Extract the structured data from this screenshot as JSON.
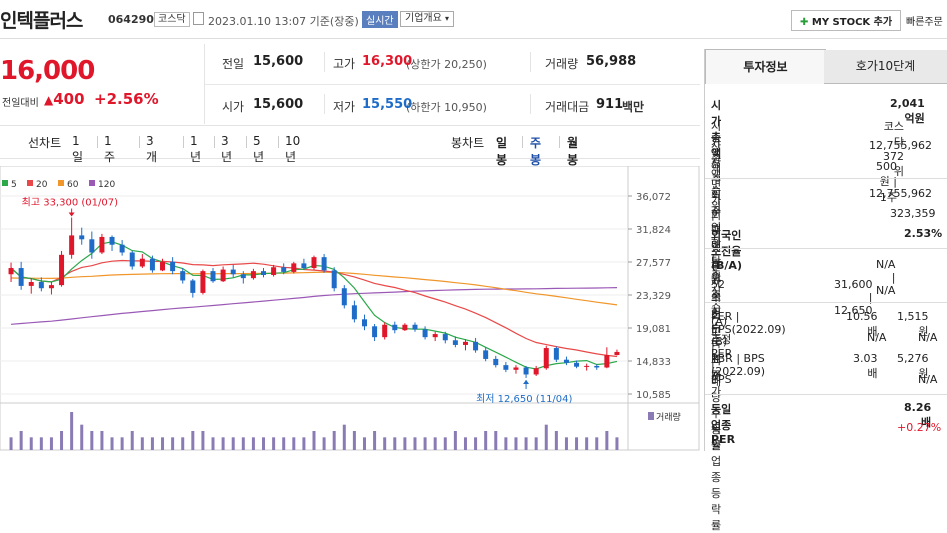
{
  "header": {
    "title": "인텍플러스",
    "code": "064290",
    "market": "코스닥",
    "datetime": "2023.01.10 13:07 기준(장중)",
    "realtime": "실시간",
    "company_info": "기업개요",
    "my_stock": "MY STOCK 추가",
    "quick_order": "빠른주문"
  },
  "price": {
    "current": "16,000",
    "change_label": "전일대비",
    "change_value": "400",
    "change_pct": "+2.56%"
  },
  "quote": {
    "prev_close_label": "전일",
    "prev_close": "15,600",
    "open_label": "시가",
    "open": "15,600",
    "high_label": "고가",
    "high": "16,300",
    "upper_limit_label": "(상한가 20,250)",
    "low_label": "저가",
    "low": "15,550",
    "lower_limit_label": "(하한가 10,950)",
    "volume_label": "거래량",
    "volume": "56,988",
    "amount_label": "거래대금",
    "amount": "911",
    "amount_unit": "백만"
  },
  "periods": {
    "line_label": "선차트",
    "line_items": [
      "1일",
      "1주일",
      "3개월",
      "1년",
      "3년",
      "5년",
      "10년"
    ],
    "candle_label": "봉차트",
    "candle_items": [
      "일봉",
      "주봉",
      "월봉"
    ],
    "active": "주봉"
  },
  "chart_data": {
    "type": "candlestick",
    "legend": [
      {
        "name": "5",
        "color": "#2ba84a"
      },
      {
        "name": "20",
        "color": "#e84848"
      },
      {
        "name": "60",
        "color": "#f0962a"
      },
      {
        "name": "120",
        "color": "#9b59b6"
      }
    ],
    "y_ticks": [
      36072,
      31824,
      27577,
      23329,
      19081,
      14833,
      10585
    ],
    "y_tick_labels": [
      "36,072",
      "31,824",
      "27,577",
      "23,329",
      "19,081",
      "14,833",
      "10,585"
    ],
    "ylim": [
      10585,
      36072
    ],
    "high_annotation": "최고 33,300 (01/07)",
    "low_annotation": "최저 12,650 (11/04)",
    "volume_label": "거래량",
    "candles": [
      [
        26000,
        27500,
        25000,
        26800
      ],
      [
        26800,
        27600,
        24000,
        24500
      ],
      [
        24500,
        25500,
        23500,
        25000
      ],
      [
        25000,
        25600,
        23800,
        24200
      ],
      [
        24200,
        25000,
        23400,
        24600
      ],
      [
        24600,
        29000,
        24400,
        28500
      ],
      [
        28500,
        33300,
        28000,
        31000
      ],
      [
        31000,
        32000,
        29800,
        30500
      ],
      [
        30500,
        31500,
        28000,
        28800
      ],
      [
        28800,
        31200,
        28600,
        30800
      ],
      [
        30800,
        31000,
        29000,
        29800
      ],
      [
        29800,
        30400,
        28400,
        28800
      ],
      [
        28800,
        29000,
        26600,
        27000
      ],
      [
        27000,
        28600,
        26800,
        28000
      ],
      [
        28000,
        28400,
        26200,
        26500
      ],
      [
        26500,
        28000,
        26400,
        27600
      ],
      [
        27600,
        28200,
        26000,
        26400
      ],
      [
        26400,
        26800,
        24800,
        25200
      ],
      [
        25200,
        25400,
        23000,
        23600
      ],
      [
        23600,
        26600,
        23400,
        26400
      ],
      [
        26400,
        26800,
        24900,
        25100
      ],
      [
        25100,
        27000,
        25000,
        26600
      ],
      [
        26600,
        27200,
        25600,
        26000
      ],
      [
        26000,
        26400,
        24800,
        25500
      ],
      [
        25500,
        26700,
        25300,
        26400
      ],
      [
        26400,
        26800,
        25600,
        25900
      ],
      [
        25900,
        27200,
        25700,
        26900
      ],
      [
        26900,
        27400,
        26000,
        26300
      ],
      [
        26300,
        27600,
        26100,
        27400
      ],
      [
        27400,
        28000,
        26600,
        26800
      ],
      [
        26800,
        28400,
        26600,
        28200
      ],
      [
        28200,
        28600,
        26200,
        26500
      ],
      [
        26500,
        26900,
        23800,
        24200
      ],
      [
        24200,
        24600,
        21600,
        22000
      ],
      [
        22000,
        22600,
        19800,
        20200
      ],
      [
        20200,
        20800,
        18800,
        19300
      ],
      [
        19300,
        19600,
        17400,
        17900
      ],
      [
        17900,
        19800,
        17600,
        19500
      ],
      [
        19500,
        19900,
        18400,
        18800
      ],
      [
        18800,
        19700,
        18700,
        19500
      ],
      [
        19500,
        19800,
        18600,
        18900
      ],
      [
        18900,
        19300,
        17600,
        17900
      ],
      [
        17900,
        18600,
        17400,
        18300
      ],
      [
        18300,
        18600,
        17100,
        17500
      ],
      [
        17500,
        18000,
        16600,
        16900
      ],
      [
        16900,
        17600,
        16200,
        17300
      ],
      [
        17300,
        17800,
        15900,
        16200
      ],
      [
        16200,
        16600,
        14800,
        15100
      ],
      [
        15100,
        15500,
        14000,
        14300
      ],
      [
        14300,
        14700,
        13400,
        13700
      ],
      [
        13700,
        14300,
        13200,
        14000
      ],
      [
        14000,
        14200,
        12650,
        13100
      ],
      [
        13100,
        14200,
        12900,
        13900
      ],
      [
        13900,
        16800,
        13700,
        16500
      ],
      [
        16500,
        16700,
        14700,
        15000
      ],
      [
        15000,
        15400,
        14300,
        14600
      ],
      [
        14600,
        14900,
        13900,
        14100
      ],
      [
        14100,
        14500,
        13600,
        14200
      ],
      [
        14200,
        14400,
        13700,
        14000
      ],
      [
        14000,
        16600,
        13900,
        15600
      ],
      [
        15600,
        16300,
        15550,
        16000
      ]
    ],
    "volumes": [
      2,
      3,
      2,
      2,
      2,
      3,
      6,
      4,
      3,
      3,
      2,
      2,
      3,
      2,
      2,
      2,
      2,
      2,
      3,
      3,
      2,
      2,
      2,
      2,
      2,
      2,
      2,
      2,
      2,
      2,
      3,
      2,
      3,
      4,
      3,
      2,
      3,
      2,
      2,
      2,
      2,
      2,
      2,
      2,
      3,
      2,
      2,
      3,
      3,
      2,
      2,
      2,
      2,
      4,
      3,
      2,
      2,
      2,
      2,
      3,
      2
    ]
  },
  "invest": {
    "tab_invest": "투자정보",
    "tab_orderbook": "호가10단계",
    "rows1": [
      {
        "label": "시가총액",
        "value": "2,041억원"
      },
      {
        "label": "시가총액순위",
        "value": "코스닥 372위"
      },
      {
        "label": "상장주식수",
        "value": "12,755,962"
      },
      {
        "label": "액면가 | 매매단위",
        "value": "500원 | 1주"
      }
    ],
    "rows2": [
      {
        "label": "외국인한도주식수(A)",
        "value": "12,755,962"
      },
      {
        "label": "외국인보유주식수(B)",
        "value": "323,359"
      },
      {
        "label": "외국인소진율(B/A)",
        "value": "2.53%"
      }
    ],
    "rows3": [
      {
        "label": "투자의견 | 목표주가",
        "value": "N/A | N/A"
      },
      {
        "label": "52주최고 | 최저",
        "value": "31,600 | 12,650"
      }
    ],
    "rows4": [
      {
        "label": "PER | EPS(2022.09)",
        "v1": "10.56배",
        "v2": "1,515원"
      },
      {
        "label": "추정PER | EPS",
        "v1": "N/A",
        "v2": "N/A"
      },
      {
        "label": "PBR | BPS (2022.09)",
        "v1": "3.03배",
        "v2": "5,276원"
      },
      {
        "label": "배당수익률",
        "v1": "",
        "v2": "N/A"
      }
    ],
    "rows5": [
      {
        "label": "동일업종 PER",
        "value": "8.26배"
      },
      {
        "label": "동일업종 등락률",
        "value": "+0.27%"
      }
    ]
  }
}
